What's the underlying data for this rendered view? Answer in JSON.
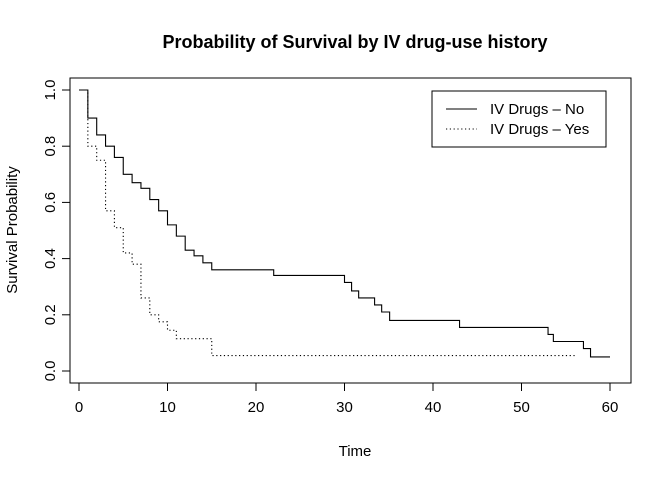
{
  "chart_data": {
    "type": "line",
    "step": true,
    "title": "Probability of Survival by IV drug-use history",
    "xlabel": "Time",
    "ylabel": "Survival Probability",
    "xlim": [
      0,
      60
    ],
    "ylim": [
      0,
      1
    ],
    "x_ticks": [
      0,
      10,
      20,
      30,
      40,
      50,
      60
    ],
    "y_ticks": [
      0.0,
      0.2,
      0.4,
      0.6,
      0.8,
      1.0
    ],
    "y_tick_labels": [
      "0.0",
      "0.2",
      "0.4",
      "0.6",
      "0.8",
      "1.0"
    ],
    "grid": false,
    "legend_position": "top-right",
    "series": [
      {
        "name": "IV Drugs – No",
        "line_style": "solid",
        "color": "#000000",
        "x": [
          0,
          1,
          2,
          3,
          4,
          5,
          6,
          7,
          8,
          9,
          10,
          11,
          12,
          13,
          14,
          15,
          22,
          30,
          30.8,
          31.6,
          33.4,
          34.2,
          35.1,
          43,
          53,
          53.6,
          57,
          57.8,
          60
        ],
        "y": [
          1.0,
          0.9,
          0.84,
          0.8,
          0.76,
          0.7,
          0.67,
          0.65,
          0.61,
          0.57,
          0.52,
          0.48,
          0.43,
          0.41,
          0.385,
          0.36,
          0.34,
          0.315,
          0.285,
          0.26,
          0.235,
          0.21,
          0.18,
          0.155,
          0.13,
          0.105,
          0.08,
          0.05,
          0.05
        ]
      },
      {
        "name": "IV Drugs – Yes",
        "line_style": "dotted",
        "color": "#000000",
        "x": [
          0,
          1,
          2,
          3,
          4,
          5,
          6,
          7,
          8,
          9,
          10,
          11,
          15,
          56
        ],
        "y": [
          1.0,
          0.8,
          0.75,
          0.57,
          0.51,
          0.42,
          0.38,
          0.26,
          0.2,
          0.175,
          0.145,
          0.115,
          0.055,
          0.055
        ]
      }
    ]
  }
}
